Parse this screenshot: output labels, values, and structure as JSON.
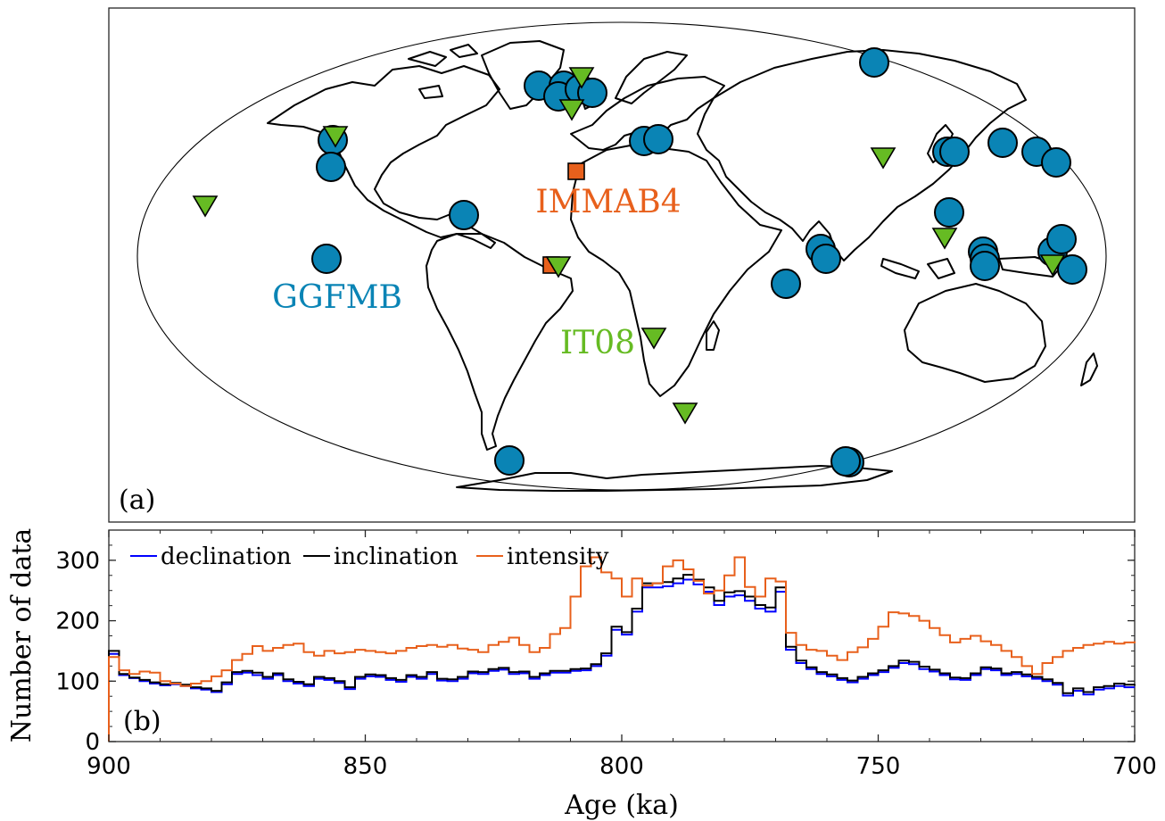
{
  "map_panel": {
    "label": "(a)",
    "datasets": [
      {
        "name": "GGFMB",
        "color": "#0a84b5",
        "marker": "circle"
      },
      {
        "name": "IMMAB4",
        "color": "#e8601c",
        "marker": "square"
      },
      {
        "name": "IT08",
        "color": "#66bb23",
        "marker": "triangle-down"
      }
    ]
  },
  "chart_data": {
    "type": "line",
    "label": "(b)",
    "xlabel": "Age (ka)",
    "ylabel": "Number of data",
    "xlim": [
      900,
      700
    ],
    "ylim": [
      0,
      350
    ],
    "xticks": [
      "900",
      "850",
      "800",
      "750",
      "700"
    ],
    "yticks": [
      "0",
      "100",
      "200",
      "300"
    ],
    "legend_position": "top-left",
    "step": "post",
    "x": [
      900,
      898,
      896,
      894,
      892,
      890,
      888,
      886,
      884,
      882,
      880,
      878,
      876,
      874,
      872,
      870,
      868,
      866,
      864,
      862,
      860,
      858,
      856,
      854,
      852,
      850,
      848,
      846,
      844,
      842,
      840,
      838,
      836,
      834,
      832,
      830,
      828,
      826,
      824,
      822,
      820,
      818,
      816,
      814,
      812,
      810,
      808,
      806,
      804,
      802,
      800,
      798,
      796,
      794,
      792,
      790,
      788,
      786,
      784,
      782,
      780,
      778,
      776,
      774,
      772,
      770,
      768,
      766,
      764,
      762,
      760,
      758,
      756,
      754,
      752,
      750,
      748,
      746,
      744,
      742,
      740,
      738,
      736,
      734,
      732,
      730,
      728,
      726,
      724,
      722,
      720,
      718,
      716,
      714,
      712,
      710,
      708,
      706,
      704,
      702,
      700
    ],
    "series": [
      {
        "name": "declination",
        "color": "#0000ff",
        "values": [
          145,
          110,
          105,
          100,
          96,
          93,
          95,
          92,
          88,
          86,
          82,
          95,
          112,
          114,
          110,
          104,
          110,
          100,
          96,
          92,
          104,
          102,
          97,
          87,
          104,
          108,
          107,
          102,
          99,
          107,
          104,
          112,
          101,
          100,
          104,
          113,
          112,
          117,
          119,
          112,
          113,
          104,
          110,
          114,
          114,
          117,
          118,
          125,
          142,
          185,
          177,
          215,
          255,
          255,
          257,
          262,
          268,
          260,
          248,
          226,
          240,
          242,
          233,
          220,
          215,
          248,
          152,
          130,
          120,
          112,
          108,
          102,
          98,
          104,
          110,
          115,
          122,
          130,
          128,
          120,
          116,
          110,
          103,
          102,
          110,
          120,
          118,
          110,
          112,
          108,
          104,
          100,
          94,
          76,
          84,
          78,
          86,
          88,
          92,
          90,
          90
        ]
      },
      {
        "name": "inclination",
        "color": "#000000",
        "values": [
          150,
          112,
          106,
          102,
          98,
          95,
          97,
          94,
          90,
          88,
          84,
          98,
          115,
          117,
          114,
          107,
          113,
          103,
          99,
          95,
          107,
          105,
          100,
          90,
          107,
          111,
          110,
          105,
          102,
          110,
          107,
          115,
          104,
          103,
          107,
          116,
          115,
          120,
          122,
          115,
          116,
          107,
          113,
          117,
          117,
          120,
          121,
          128,
          146,
          190,
          181,
          220,
          262,
          262,
          264,
          270,
          276,
          268,
          255,
          233,
          247,
          249,
          240,
          226,
          222,
          255,
          157,
          134,
          123,
          115,
          111,
          105,
          101,
          107,
          113,
          118,
          125,
          134,
          132,
          124,
          119,
          113,
          106,
          105,
          113,
          123,
          121,
          113,
          115,
          111,
          107,
          103,
          97,
          80,
          88,
          82,
          90,
          92,
          96,
          94,
          95
        ]
      },
      {
        "name": "intensity",
        "color": "#e8601c",
        "values": [
          140,
          118,
          112,
          116,
          114,
          100,
          96,
          92,
          96,
          100,
          108,
          118,
          135,
          145,
          158,
          150,
          155,
          160,
          162,
          148,
          142,
          150,
          146,
          148,
          152,
          150,
          148,
          146,
          150,
          155,
          158,
          160,
          157,
          160,
          154,
          152,
          148,
          160,
          165,
          172,
          160,
          148,
          155,
          178,
          188,
          240,
          290,
          305,
          280,
          270,
          240,
          270,
          258,
          262,
          290,
          300,
          285,
          266,
          245,
          250,
          275,
          305,
          256,
          240,
          270,
          265,
          180,
          160,
          152,
          150,
          142,
          135,
          148,
          156,
          170,
          190,
          214,
          212,
          208,
          200,
          188,
          176,
          164,
          170,
          175,
          166,
          160,
          150,
          140,
          125,
          112,
          130,
          140,
          150,
          155,
          160,
          162,
          165,
          162,
          164,
          166
        ]
      }
    ]
  }
}
